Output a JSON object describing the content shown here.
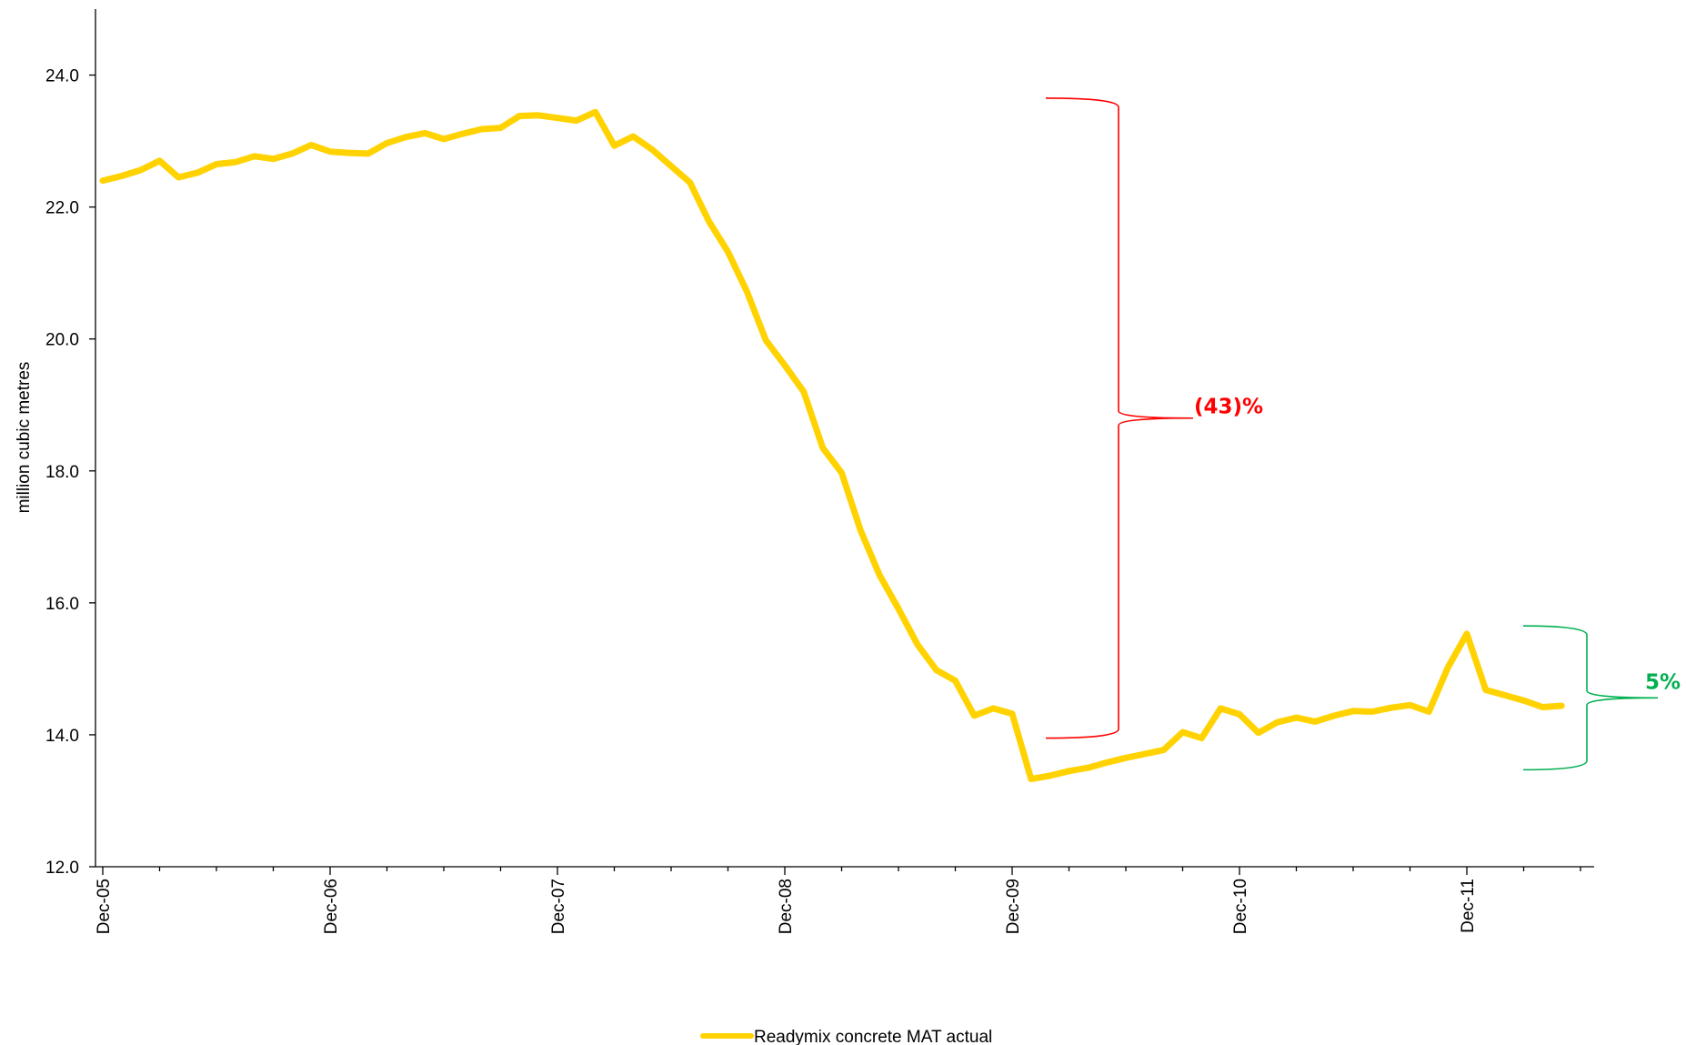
{
  "chart_data": {
    "type": "line",
    "title": "",
    "xlabel": "",
    "ylabel": "million cubic metres",
    "ylim": [
      12.0,
      25.0
    ],
    "y_ticks": [
      "12.0",
      "14.0",
      "16.0",
      "18.0",
      "20.0",
      "22.0",
      "24.0"
    ],
    "x_ticks": [
      "Dec-05",
      "Dec-06",
      "Dec-07",
      "Dec-08",
      "Dec-09",
      "Dec-10",
      "Dec-11"
    ],
    "x_range": [
      "Dec-05",
      "Jul-12"
    ],
    "grid": false,
    "legend_position": "bottom-center",
    "colors": {
      "series": "#FFD200",
      "decline_annotation": "#FF0000",
      "rise_annotation": "#00B050",
      "axis": "#000000"
    },
    "series": [
      {
        "name": "Readymix concrete MAT actual",
        "x": [
          "Dec-05",
          "Jan-06",
          "Feb-06",
          "Mar-06",
          "Apr-06",
          "May-06",
          "Jun-06",
          "Jul-06",
          "Aug-06",
          "Sep-06",
          "Oct-06",
          "Nov-06",
          "Dec-06",
          "Jan-07",
          "Feb-07",
          "Mar-07",
          "Apr-07",
          "May-07",
          "Jun-07",
          "Jul-07",
          "Aug-07",
          "Sep-07",
          "Oct-07",
          "Nov-07",
          "Dec-07",
          "Jan-08",
          "Feb-08",
          "Mar-08",
          "Apr-08",
          "May-08",
          "Jun-08",
          "Jul-08",
          "Aug-08",
          "Sep-08",
          "Oct-08",
          "Nov-08",
          "Dec-08",
          "Jan-09",
          "Feb-09",
          "Mar-09",
          "Apr-09",
          "May-09",
          "Jun-09",
          "Jul-09",
          "Aug-09",
          "Sep-09",
          "Oct-09",
          "Nov-09",
          "Dec-09",
          "Jan-10",
          "Feb-10",
          "Mar-10",
          "Apr-10",
          "May-10",
          "Jun-10",
          "Jul-10",
          "Aug-10",
          "Sep-10",
          "Oct-10",
          "Nov-10",
          "Dec-10",
          "Jan-11",
          "Feb-11",
          "Mar-11",
          "Apr-11",
          "May-11",
          "Jun-11",
          "Jul-11",
          "Aug-11",
          "Sep-11",
          "Oct-11",
          "Nov-11",
          "Dec-11",
          "Jan-12",
          "Feb-12",
          "Mar-12",
          "Apr-12",
          "May-12",
          "Jun-12"
        ],
        "values": [
          22.4,
          22.47,
          22.56,
          22.7,
          22.45,
          22.52,
          22.65,
          22.68,
          22.77,
          22.73,
          22.81,
          22.94,
          22.84,
          22.82,
          22.81,
          22.97,
          23.06,
          23.12,
          23.03,
          23.11,
          23.18,
          23.2,
          23.38,
          23.39,
          23.35,
          23.31,
          23.44,
          22.93,
          23.07,
          22.87,
          22.62,
          22.37,
          21.78,
          21.32,
          20.72,
          19.98,
          19.6,
          19.2,
          18.35,
          17.97,
          17.1,
          16.42,
          15.91,
          15.37,
          14.98,
          14.82,
          14.29,
          14.4,
          14.32,
          13.33,
          13.38,
          13.45,
          13.5,
          13.58,
          13.65,
          13.71,
          13.77,
          14.04,
          13.95,
          14.4,
          14.31,
          14.03,
          14.19,
          14.26,
          14.2,
          14.29,
          14.36,
          14.35,
          14.41,
          14.45,
          14.35,
          15.02,
          15.53,
          14.68,
          14.6,
          14.52,
          14.42,
          14.44,
          null
        ]
      }
    ],
    "annotations": [
      {
        "label": "(43)%",
        "type": "brace",
        "color": "#FF0000",
        "from": 13.95,
        "to": 23.65
      },
      {
        "label": "5%",
        "type": "brace",
        "color": "#00B050",
        "from": 13.47,
        "to": 15.65
      }
    ]
  }
}
